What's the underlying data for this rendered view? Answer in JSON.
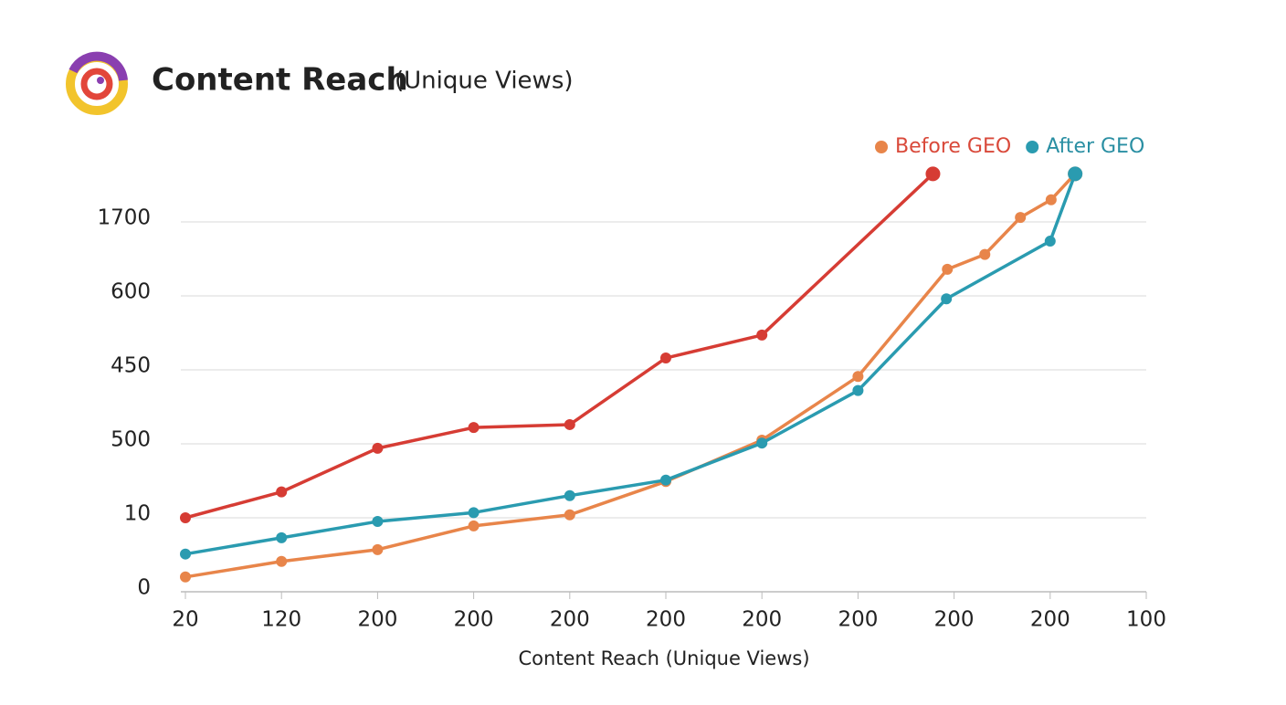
{
  "chart_data": {
    "type": "line",
    "title": "Content Reach",
    "subtitle": "(Unique Views)",
    "x_label": "Content Reach (Unique Views)",
    "xlim": [
      0,
      10
    ],
    "xticks": [
      {
        "value": 0,
        "label": "20"
      },
      {
        "value": 1,
        "label": "120"
      },
      {
        "value": 2,
        "label": "200"
      },
      {
        "value": 3,
        "label": "200"
      },
      {
        "value": 4,
        "label": "200"
      },
      {
        "value": 5,
        "label": "200"
      },
      {
        "value": 6,
        "label": "200"
      },
      {
        "value": 7,
        "label": "200"
      },
      {
        "value": 8,
        "label": "200"
      },
      {
        "value": 9,
        "label": "200"
      },
      {
        "value": 10,
        "label": "100"
      }
    ],
    "ylim": [
      0,
      5
    ],
    "yticks": [
      {
        "value": 0,
        "label": "0"
      },
      {
        "value": 1,
        "label": "10"
      },
      {
        "value": 2,
        "label": "500"
      },
      {
        "value": 3,
        "label": "450"
      },
      {
        "value": 4,
        "label": "600"
      },
      {
        "value": 5,
        "label": "1700"
      }
    ],
    "grid": true,
    "legend": "top-right",
    "series": [
      {
        "color": "#d63c34",
        "x": [
          0,
          1,
          2,
          3,
          4,
          5,
          6,
          7.78
        ],
        "values": [
          1.0,
          1.35,
          1.94,
          2.22,
          2.26,
          3.16,
          3.47,
          5.65
        ]
      },
      {
        "name": "Before GEO",
        "color": "#e8854a",
        "legend_text_color": "#d9493a",
        "x": [
          0,
          1,
          2,
          3,
          4,
          5,
          6,
          7,
          7.93,
          8.32,
          8.69,
          9.01,
          9.26
        ],
        "values": [
          0.2,
          0.41,
          0.57,
          0.89,
          1.04,
          1.49,
          2.05,
          2.91,
          4.36,
          4.56,
          5.06,
          5.3,
          5.65
        ]
      },
      {
        "name": "After GEO",
        "color": "#2a9bb0",
        "legend_text_color": "#2a8fa3",
        "x": [
          0,
          1,
          2,
          3,
          4,
          5,
          6,
          7,
          7.92,
          9.0,
          9.26
        ],
        "values": [
          0.51,
          0.73,
          0.95,
          1.07,
          1.3,
          1.51,
          2.01,
          2.72,
          3.96,
          4.74,
          5.65
        ]
      }
    ]
  }
}
